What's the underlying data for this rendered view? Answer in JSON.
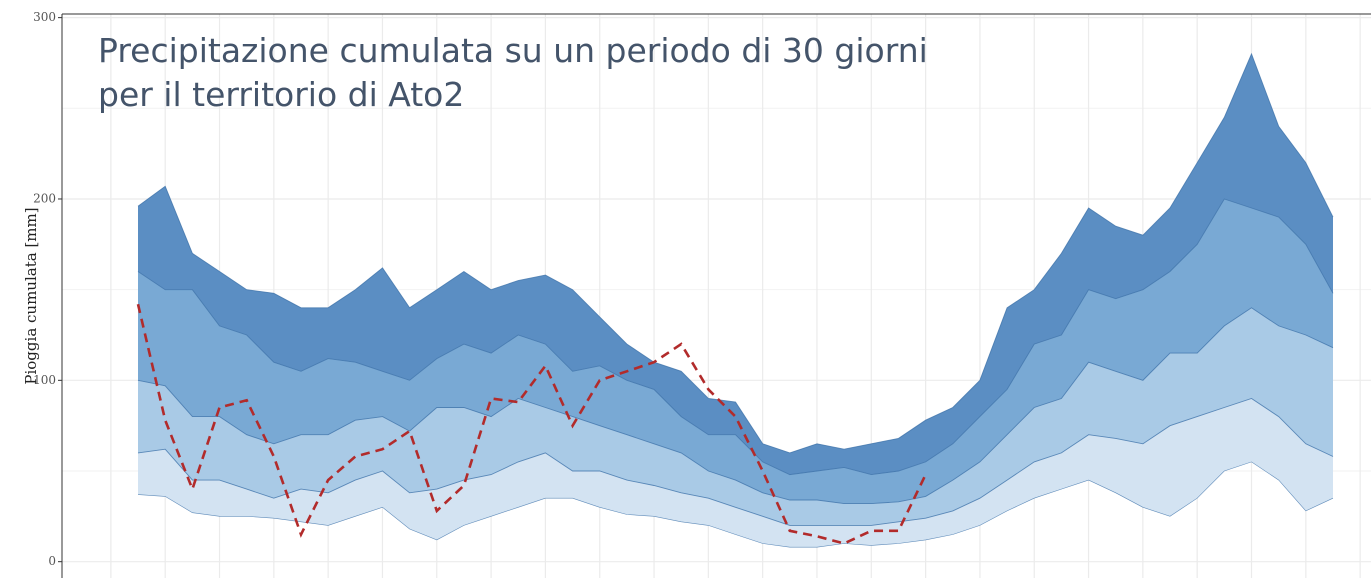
{
  "chart_data": {
    "type": "band",
    "title": [
      "Precipitazione cumulata su un periodo di 30 giorni",
      "per il territorio di Ato2"
    ],
    "ylabel": "Pioggia cumulata [mm]",
    "x": [
      0,
      1,
      2,
      3,
      4,
      5,
      6,
      7,
      8,
      9,
      10,
      11,
      12,
      13,
      14,
      15,
      16,
      17,
      18,
      19,
      20,
      21,
      22,
      23,
      24,
      25,
      26,
      27,
      28,
      29,
      30,
      31,
      32,
      33,
      34,
      35,
      36,
      37,
      38,
      39,
      40,
      41,
      42,
      43,
      44
    ],
    "xlim": [
      -2.8,
      45.4
    ],
    "xticks": [
      -1,
      1,
      3,
      5,
      7,
      9,
      11,
      13,
      15,
      17,
      19,
      21,
      23,
      25,
      27,
      29,
      31,
      33,
      35,
      37,
      39,
      41,
      43,
      45
    ],
    "ylim": [
      -9,
      302
    ],
    "yticks": [
      0,
      100,
      200,
      300
    ],
    "yminor": [
      50,
      150,
      250
    ],
    "grid": true,
    "series": [
      {
        "color": "#3f73aa",
        "values": [
          37,
          36,
          27,
          25,
          25,
          24,
          22,
          20,
          25,
          30,
          18,
          12,
          20,
          25,
          30,
          35,
          35,
          30,
          26,
          25,
          22,
          20,
          15,
          10,
          8,
          8,
          10,
          9,
          10,
          12,
          15,
          20,
          28,
          35,
          40,
          45,
          38,
          30,
          25,
          35,
          50,
          55,
          45,
          28,
          35
        ]
      },
      {
        "color": "#d3e3f2",
        "values": [
          60,
          62,
          45,
          45,
          40,
          35,
          40,
          38,
          45,
          50,
          38,
          40,
          45,
          48,
          55,
          60,
          50,
          50,
          45,
          42,
          38,
          35,
          30,
          25,
          20,
          20,
          20,
          20,
          22,
          24,
          28,
          35,
          45,
          55,
          60,
          70,
          68,
          65,
          75,
          80,
          85,
          90,
          80,
          65,
          58
        ]
      },
      {
        "color": "#a9cae6",
        "values": [
          100,
          97,
          80,
          80,
          70,
          65,
          70,
          70,
          78,
          80,
          72,
          85,
          85,
          80,
          90,
          85,
          80,
          75,
          70,
          65,
          60,
          50,
          45,
          38,
          34,
          34,
          32,
          32,
          33,
          36,
          45,
          55,
          70,
          85,
          90,
          110,
          105,
          100,
          115,
          115,
          130,
          140,
          130,
          125,
          118
        ]
      },
      {
        "color": "#79a9d4",
        "values": [
          160,
          150,
          150,
          130,
          125,
          110,
          105,
          112,
          110,
          105,
          100,
          112,
          120,
          115,
          125,
          120,
          105,
          108,
          100,
          95,
          80,
          70,
          70,
          55,
          48,
          50,
          52,
          48,
          50,
          55,
          65,
          80,
          95,
          120,
          125,
          150,
          145,
          150,
          160,
          175,
          200,
          195,
          190,
          175,
          148
        ]
      },
      {
        "color": "#5b8ec3",
        "values": [
          196,
          207,
          170,
          160,
          150,
          148,
          140,
          140,
          150,
          162,
          140,
          150,
          160,
          150,
          155,
          158,
          150,
          135,
          120,
          110,
          105,
          90,
          88,
          65,
          60,
          65,
          62,
          65,
          68,
          78,
          85,
          100,
          140,
          150,
          170,
          195,
          185,
          180,
          195,
          220,
          245,
          280,
          240,
          220,
          190
        ]
      }
    ],
    "observed": {
      "color": "#b22b2b",
      "values": [
        142,
        78,
        40,
        85,
        89,
        58,
        15,
        45,
        58,
        62,
        72,
        28,
        42,
        90,
        88,
        108,
        75,
        100,
        105,
        110,
        120,
        95,
        80,
        50,
        17,
        14,
        10,
        17,
        17,
        48,
        null,
        null,
        null,
        null,
        null,
        null,
        null,
        null,
        null,
        null,
        null,
        null,
        null,
        null,
        null
      ]
    }
  }
}
